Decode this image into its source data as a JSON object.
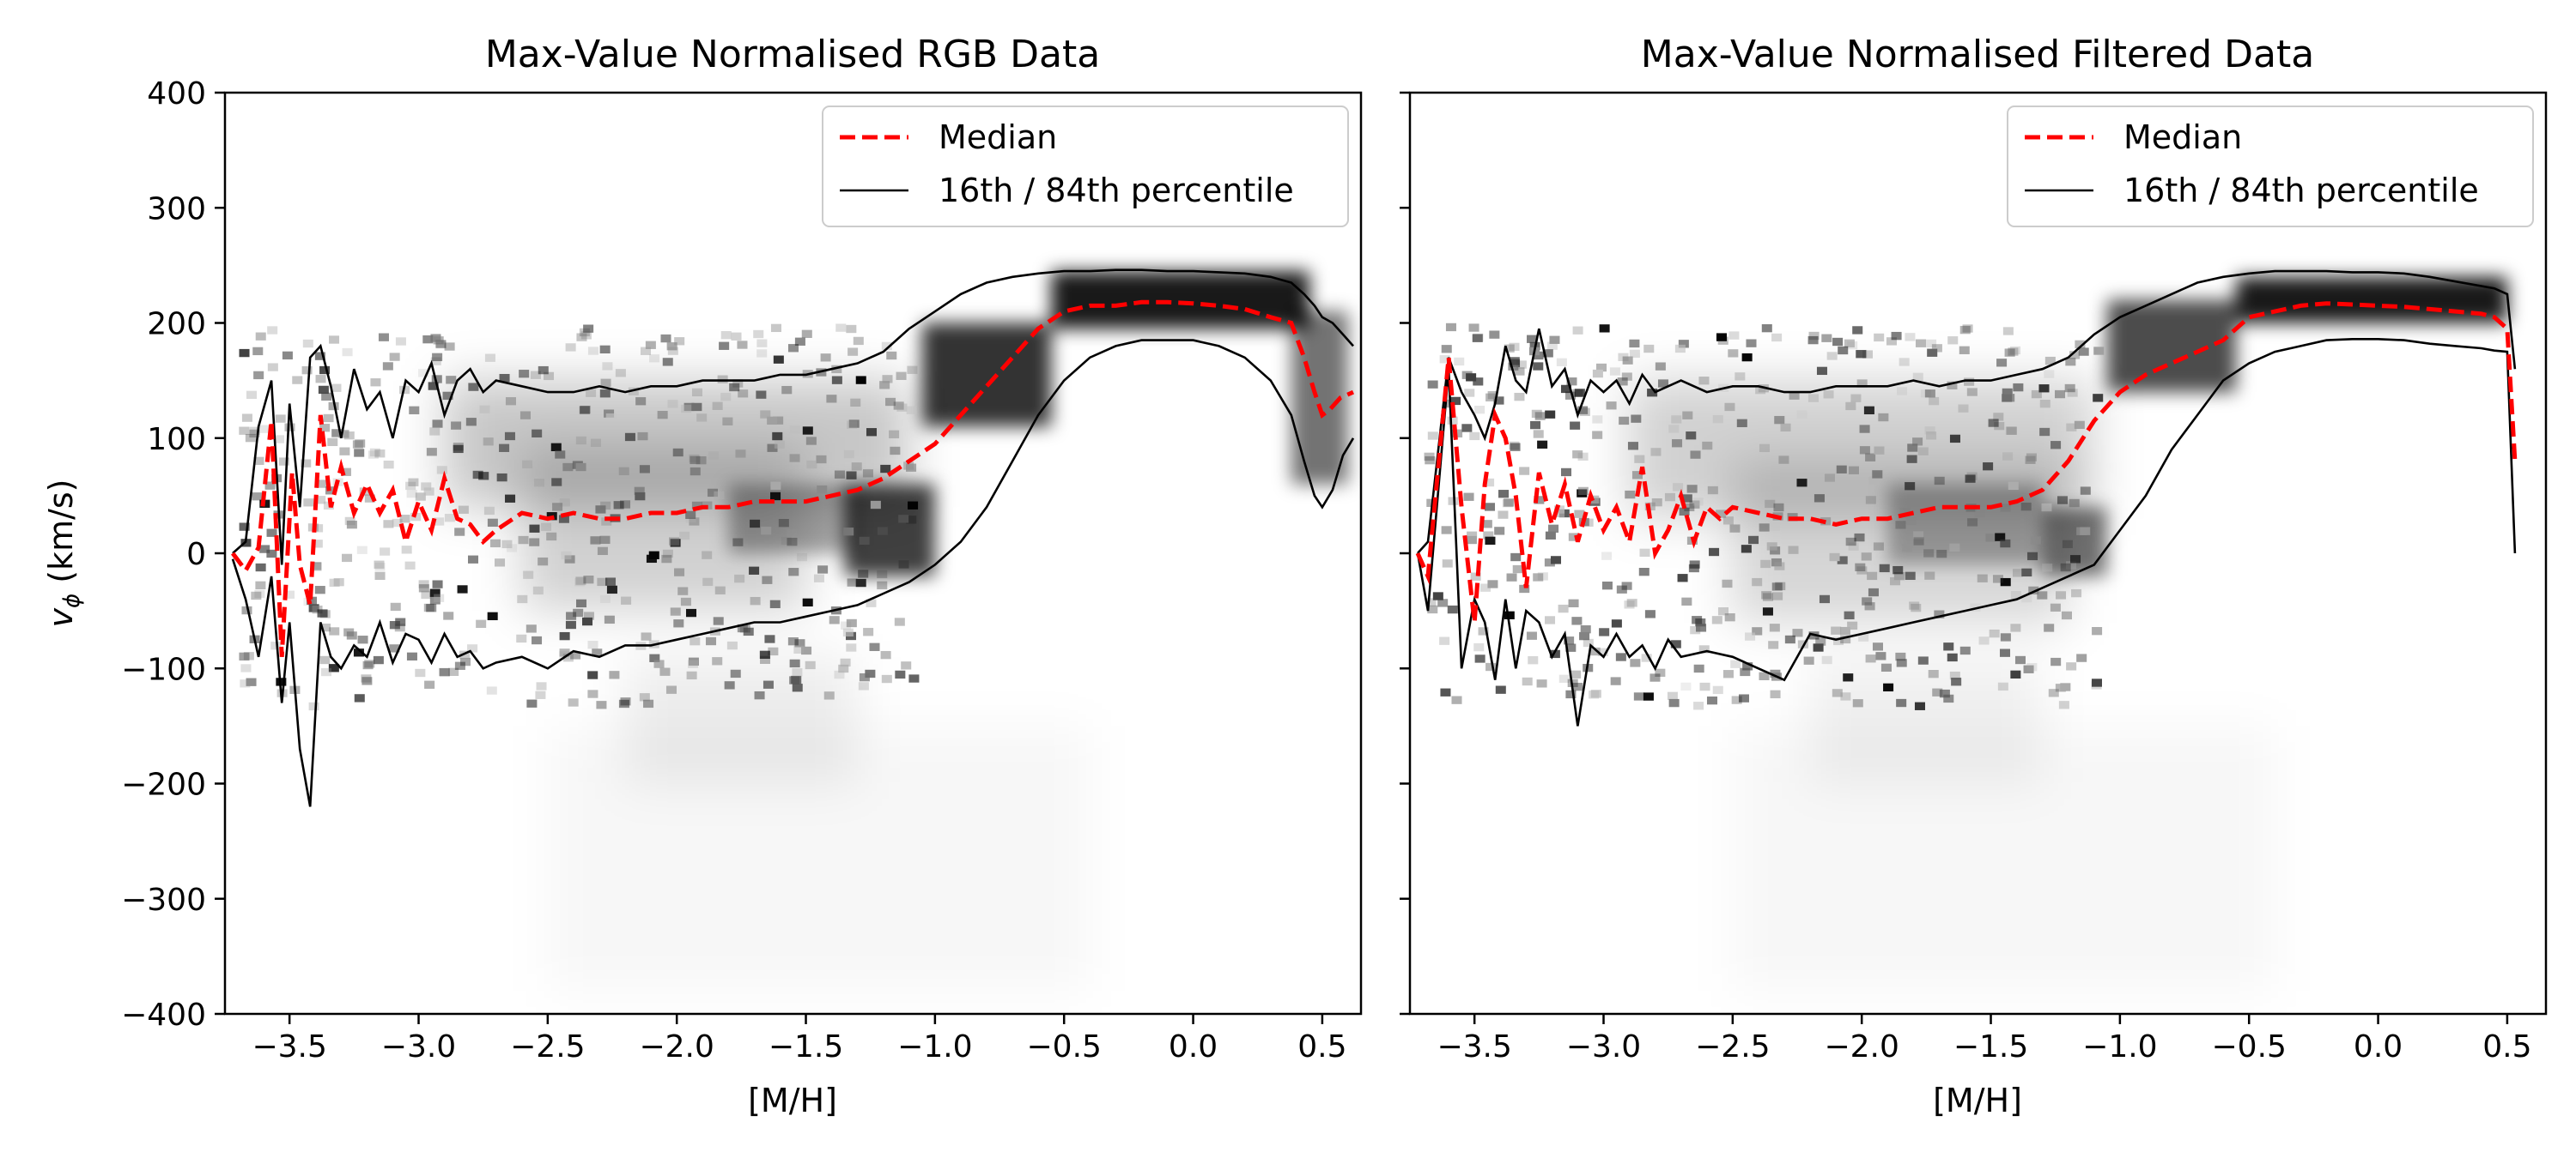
{
  "colors": {
    "median": "#ff0000",
    "percentile": "#000000",
    "density": "#000000",
    "background": "#ffffff"
  },
  "chart_data": [
    {
      "type": "heatmap",
      "title": "Max-Value Normalised RGB Data",
      "xlabel": "[M/H]",
      "ylabel_var": "v",
      "ylabel_sub": "ϕ",
      "ylabel_unit": " (km/s)",
      "xlim": [
        -3.75,
        0.65
      ],
      "ylim": [
        -400,
        400
      ],
      "x_ticks": [
        -3.5,
        -3.0,
        -2.5,
        -2.0,
        -1.5,
        -1.0,
        -0.5,
        0.0,
        0.5
      ],
      "x_tick_labels": [
        "−3.5",
        "−3.0",
        "−2.5",
        "−2.0",
        "−1.5",
        "−1.0",
        "−0.5",
        "0.0",
        "0.5"
      ],
      "y_ticks": [
        -400,
        -300,
        -200,
        -100,
        0,
        100,
        200,
        300,
        400
      ],
      "y_tick_labels": [
        "−400",
        "−300",
        "−200",
        "−100",
        "0",
        "100",
        "200",
        "300",
        "400"
      ],
      "legend": {
        "position": "upper-right",
        "entries": [
          {
            "label": "Median",
            "style": "dashed-red"
          },
          {
            "label": "16th / 84th percentile",
            "style": "solid-black"
          }
        ]
      },
      "colormap": "greys",
      "series": [
        {
          "name": "Median",
          "x": [
            -3.72,
            -3.67,
            -3.62,
            -3.57,
            -3.53,
            -3.49,
            -3.46,
            -3.42,
            -3.38,
            -3.34,
            -3.3,
            -3.25,
            -3.2,
            -3.15,
            -3.1,
            -3.05,
            -3.0,
            -2.95,
            -2.9,
            -2.85,
            -2.8,
            -2.75,
            -2.7,
            -2.6,
            -2.5,
            -2.4,
            -2.3,
            -2.2,
            -2.1,
            -2.0,
            -1.9,
            -1.8,
            -1.7,
            -1.6,
            -1.5,
            -1.4,
            -1.3,
            -1.2,
            -1.1,
            -1.0,
            -0.9,
            -0.8,
            -0.7,
            -0.6,
            -0.5,
            -0.4,
            -0.3,
            -0.2,
            -0.1,
            0.0,
            0.1,
            0.2,
            0.3,
            0.38,
            0.43,
            0.47,
            0.5,
            0.53,
            0.57,
            0.62
          ],
          "values": [
            0,
            -15,
            5,
            115,
            -90,
            70,
            -10,
            -45,
            120,
            40,
            75,
            35,
            60,
            35,
            55,
            10,
            45,
            20,
            65,
            30,
            25,
            10,
            20,
            35,
            30,
            35,
            30,
            30,
            35,
            35,
            40,
            40,
            45,
            45,
            45,
            50,
            55,
            65,
            80,
            95,
            120,
            145,
            170,
            195,
            210,
            215,
            215,
            218,
            218,
            217,
            215,
            212,
            205,
            200,
            170,
            140,
            120,
            125,
            135,
            140
          ]
        },
        {
          "name": "16th percentile",
          "x": [
            -3.72,
            -3.67,
            -3.62,
            -3.57,
            -3.53,
            -3.5,
            -3.46,
            -3.42,
            -3.38,
            -3.34,
            -3.3,
            -3.25,
            -3.2,
            -3.15,
            -3.1,
            -3.05,
            -3.0,
            -2.95,
            -2.9,
            -2.85,
            -2.8,
            -2.75,
            -2.7,
            -2.6,
            -2.5,
            -2.4,
            -2.3,
            -2.2,
            -2.1,
            -2.0,
            -1.9,
            -1.8,
            -1.7,
            -1.6,
            -1.5,
            -1.4,
            -1.3,
            -1.2,
            -1.1,
            -1.0,
            -0.9,
            -0.8,
            -0.7,
            -0.6,
            -0.5,
            -0.4,
            -0.3,
            -0.2,
            -0.1,
            0.0,
            0.1,
            0.2,
            0.3,
            0.38,
            0.43,
            0.47,
            0.5,
            0.54,
            0.58,
            0.62
          ],
          "values": [
            -5,
            -40,
            -90,
            -20,
            -130,
            -60,
            -170,
            -220,
            -60,
            -90,
            -100,
            -80,
            -90,
            -60,
            -95,
            -70,
            -75,
            -95,
            -70,
            -90,
            -85,
            -100,
            -95,
            -90,
            -100,
            -85,
            -90,
            -80,
            -80,
            -75,
            -70,
            -65,
            -60,
            -60,
            -55,
            -50,
            -45,
            -35,
            -25,
            -10,
            10,
            40,
            80,
            120,
            150,
            170,
            180,
            185,
            185,
            185,
            180,
            170,
            150,
            120,
            80,
            50,
            40,
            55,
            85,
            100
          ]
        },
        {
          "name": "84th percentile",
          "x": [
            -3.72,
            -3.67,
            -3.62,
            -3.57,
            -3.53,
            -3.5,
            -3.46,
            -3.42,
            -3.38,
            -3.34,
            -3.3,
            -3.25,
            -3.2,
            -3.15,
            -3.1,
            -3.05,
            -3.0,
            -2.95,
            -2.9,
            -2.85,
            -2.8,
            -2.75,
            -2.7,
            -2.6,
            -2.5,
            -2.4,
            -2.3,
            -2.2,
            -2.1,
            -2.0,
            -1.9,
            -1.8,
            -1.7,
            -1.6,
            -1.5,
            -1.4,
            -1.3,
            -1.2,
            -1.1,
            -1.0,
            -0.9,
            -0.8,
            -0.7,
            -0.6,
            -0.5,
            -0.4,
            -0.3,
            -0.2,
            -0.1,
            0.0,
            0.1,
            0.2,
            0.3,
            0.38,
            0.43,
            0.47,
            0.5,
            0.54,
            0.58,
            0.62
          ],
          "values": [
            0,
            10,
            110,
            150,
            -10,
            130,
            40,
            170,
            180,
            145,
            100,
            160,
            125,
            140,
            100,
            150,
            140,
            165,
            120,
            150,
            160,
            140,
            150,
            145,
            140,
            140,
            145,
            140,
            145,
            145,
            150,
            150,
            150,
            155,
            155,
            160,
            165,
            175,
            195,
            210,
            225,
            235,
            240,
            243,
            245,
            245,
            246,
            246,
            245,
            245,
            244,
            243,
            240,
            235,
            225,
            215,
            205,
            200,
            190,
            180
          ]
        }
      ]
    },
    {
      "type": "heatmap",
      "title": "Max-Value Normalised Filtered Data",
      "xlabel": "[M/H]",
      "xlim": [
        -3.75,
        0.65
      ],
      "ylim": [
        -400,
        400
      ],
      "x_ticks": [
        -3.5,
        -3.0,
        -2.5,
        -2.0,
        -1.5,
        -1.0,
        -0.5,
        0.0,
        0.5
      ],
      "x_tick_labels": [
        "−3.5",
        "−3.0",
        "−2.5",
        "−2.0",
        "−1.5",
        "−1.0",
        "−0.5",
        "0.0",
        "0.5"
      ],
      "y_ticks": [
        -400,
        -300,
        -200,
        -100,
        0,
        100,
        200,
        300,
        400
      ],
      "legend": {
        "position": "upper-right",
        "entries": [
          {
            "label": "Median",
            "style": "dashed-red"
          },
          {
            "label": "16th / 84th percentile",
            "style": "solid-black"
          }
        ]
      },
      "colormap": "greys",
      "series": [
        {
          "name": "Median",
          "x": [
            -3.72,
            -3.68,
            -3.6,
            -3.55,
            -3.5,
            -3.46,
            -3.42,
            -3.38,
            -3.34,
            -3.3,
            -3.25,
            -3.2,
            -3.15,
            -3.1,
            -3.05,
            -3.0,
            -2.95,
            -2.9,
            -2.85,
            -2.8,
            -2.75,
            -2.7,
            -2.65,
            -2.6,
            -2.55,
            -2.5,
            -2.4,
            -2.3,
            -2.2,
            -2.1,
            -2.0,
            -1.9,
            -1.8,
            -1.7,
            -1.6,
            -1.5,
            -1.4,
            -1.3,
            -1.2,
            -1.1,
            -1.0,
            -0.9,
            -0.8,
            -0.7,
            -0.6,
            -0.5,
            -0.4,
            -0.3,
            -0.2,
            -0.1,
            0.0,
            0.1,
            0.2,
            0.3,
            0.4,
            0.45,
            0.5,
            0.53
          ],
          "values": [
            0,
            -20,
            170,
            40,
            -60,
            60,
            120,
            100,
            50,
            -30,
            70,
            25,
            60,
            10,
            50,
            20,
            40,
            10,
            75,
            0,
            20,
            50,
            10,
            40,
            30,
            40,
            35,
            30,
            30,
            25,
            30,
            30,
            35,
            40,
            40,
            40,
            45,
            55,
            80,
            115,
            140,
            155,
            165,
            175,
            185,
            205,
            210,
            215,
            217,
            216,
            215,
            214,
            212,
            210,
            208,
            205,
            195,
            80
          ]
        },
        {
          "name": "16th percentile",
          "x": [
            -3.72,
            -3.68,
            -3.6,
            -3.55,
            -3.5,
            -3.46,
            -3.42,
            -3.38,
            -3.34,
            -3.3,
            -3.25,
            -3.2,
            -3.15,
            -3.1,
            -3.05,
            -3.0,
            -2.95,
            -2.9,
            -2.85,
            -2.8,
            -2.75,
            -2.7,
            -2.6,
            -2.5,
            -2.4,
            -2.3,
            -2.2,
            -2.1,
            -2.0,
            -1.9,
            -1.8,
            -1.7,
            -1.6,
            -1.5,
            -1.4,
            -1.3,
            -1.2,
            -1.1,
            -1.0,
            -0.9,
            -0.8,
            -0.7,
            -0.6,
            -0.5,
            -0.4,
            -0.3,
            -0.2,
            -0.1,
            0.0,
            0.1,
            0.2,
            0.3,
            0.4,
            0.45,
            0.5,
            0.53
          ],
          "values": [
            0,
            -50,
            160,
            -100,
            -40,
            -60,
            -110,
            -40,
            -100,
            -50,
            -60,
            -90,
            -70,
            -150,
            -80,
            -90,
            -70,
            -90,
            -80,
            -100,
            -75,
            -90,
            -85,
            -90,
            -100,
            -110,
            -70,
            -75,
            -70,
            -65,
            -60,
            -55,
            -50,
            -45,
            -40,
            -30,
            -20,
            -10,
            20,
            50,
            90,
            120,
            150,
            165,
            175,
            180,
            185,
            186,
            186,
            185,
            182,
            180,
            178,
            176,
            175,
            0
          ]
        },
        {
          "name": "84th percentile",
          "x": [
            -3.72,
            -3.68,
            -3.6,
            -3.55,
            -3.5,
            -3.46,
            -3.42,
            -3.38,
            -3.34,
            -3.3,
            -3.25,
            -3.2,
            -3.15,
            -3.1,
            -3.05,
            -3.0,
            -2.95,
            -2.9,
            -2.85,
            -2.8,
            -2.75,
            -2.7,
            -2.6,
            -2.5,
            -2.4,
            -2.3,
            -2.2,
            -2.1,
            -2.0,
            -1.9,
            -1.8,
            -1.7,
            -1.6,
            -1.5,
            -1.4,
            -1.3,
            -1.2,
            -1.1,
            -1.0,
            -0.9,
            -0.8,
            -0.7,
            -0.6,
            -0.5,
            -0.4,
            -0.3,
            -0.2,
            -0.1,
            0.0,
            0.1,
            0.2,
            0.3,
            0.4,
            0.45,
            0.5,
            0.53
          ],
          "values": [
            0,
            10,
            170,
            140,
            120,
            100,
            130,
            180,
            150,
            140,
            195,
            145,
            160,
            120,
            150,
            140,
            150,
            130,
            155,
            140,
            145,
            150,
            140,
            145,
            145,
            140,
            140,
            145,
            145,
            145,
            150,
            145,
            150,
            150,
            155,
            160,
            170,
            190,
            205,
            215,
            225,
            235,
            240,
            243,
            245,
            245,
            245,
            244,
            244,
            243,
            240,
            236,
            232,
            230,
            225,
            160
          ]
        }
      ]
    }
  ]
}
